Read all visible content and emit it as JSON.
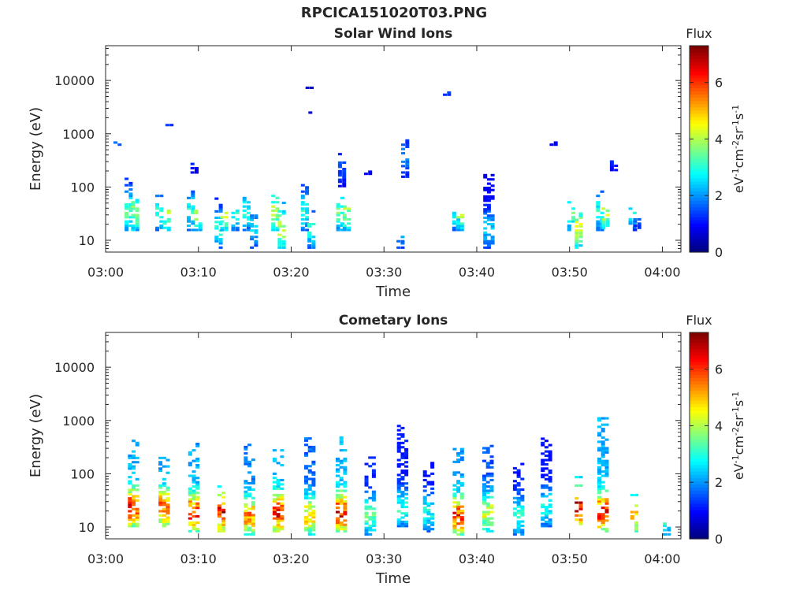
{
  "figure": {
    "title": "RPCICA151020T03.PNG"
  },
  "colors": {
    "background": "#ffffff",
    "axis": "#262626",
    "colormap": "jet"
  },
  "panels": [
    {
      "id": "solar-wind",
      "title": "Solar Wind Ions",
      "xlabel": "Time",
      "ylabel": "Energy (eV)",
      "colorbar_title": "Flux",
      "colorbar_unit": "eV-1cm-2sr-1s-1"
    },
    {
      "id": "cometary",
      "title": "Cometary Ions",
      "xlabel": "Time",
      "ylabel": "Energy (eV)",
      "colorbar_title": "Flux",
      "colorbar_unit": "eV-1cm-2sr-1s-1"
    }
  ],
  "chart_data": [
    {
      "type": "heatmap",
      "title": "Solar Wind Ions",
      "xlabel": "Time",
      "ylabel": "Energy (eV)",
      "x_ticks": [
        "03:00",
        "03:10",
        "03:20",
        "03:30",
        "03:40",
        "03:50",
        "04:00"
      ],
      "y_ticks": [
        10,
        100,
        1000,
        10000
      ],
      "y_scale": "log",
      "y_range": [
        6,
        45000
      ],
      "x_range_minutes": [
        0,
        62
      ],
      "colorbar": {
        "title": "Flux",
        "unit": "eV-1cm-2sr-1s-1",
        "range": [
          0,
          7.3
        ],
        "ticks": [
          0,
          2,
          4,
          6
        ]
      },
      "bursts": [
        {
          "t": 1.3,
          "emin": 600,
          "emax": 700,
          "v": 2.5
        },
        {
          "t": 2.5,
          "emin": 15,
          "emax": 150,
          "v": 3.5
        },
        {
          "t": 3.2,
          "emin": 15,
          "emax": 60,
          "v": 4.0
        },
        {
          "t": 5.8,
          "emin": 15,
          "emax": 70,
          "v": 3.0
        },
        {
          "t": 6.6,
          "emin": 15,
          "emax": 40,
          "v": 4.0
        },
        {
          "t": 6.9,
          "emin": 1400,
          "emax": 1500,
          "v": 2.5
        },
        {
          "t": 9.2,
          "emin": 15,
          "emax": 80,
          "v": 3.0
        },
        {
          "t": 9.6,
          "emin": 180,
          "emax": 300,
          "v": 1.5
        },
        {
          "t": 10.0,
          "emin": 15,
          "emax": 40,
          "v": 4.2
        },
        {
          "t": 12.2,
          "emin": 7,
          "emax": 60,
          "v": 3.0
        },
        {
          "t": 12.8,
          "emin": 15,
          "emax": 35,
          "v": 4.5
        },
        {
          "t": 14.0,
          "emin": 15,
          "emax": 40,
          "v": 3.0
        },
        {
          "t": 15.2,
          "emin": 15,
          "emax": 70,
          "v": 3.0
        },
        {
          "t": 16.0,
          "emin": 7,
          "emax": 30,
          "v": 2.5
        },
        {
          "t": 18.3,
          "emin": 15,
          "emax": 90,
          "v": 4.0
        },
        {
          "t": 19.0,
          "emin": 7,
          "emax": 50,
          "v": 4.5
        },
        {
          "t": 21.5,
          "emin": 15,
          "emax": 120,
          "v": 3.0
        },
        {
          "t": 22.2,
          "emin": 7,
          "emax": 40,
          "v": 3.0
        },
        {
          "t": 22.0,
          "emin": 7000,
          "emax": 7500,
          "v": 1.0
        },
        {
          "t": 22.3,
          "emin": 2400,
          "emax": 2600,
          "v": 1.5
        },
        {
          "t": 25.3,
          "emin": 15,
          "emax": 60,
          "v": 3.5
        },
        {
          "t": 25.5,
          "emin": 100,
          "emax": 400,
          "v": 1.5
        },
        {
          "t": 26.0,
          "emin": 15,
          "emax": 45,
          "v": 4.0
        },
        {
          "t": 28.3,
          "emin": 170,
          "emax": 190,
          "v": 1.5
        },
        {
          "t": 31.8,
          "emin": 7,
          "emax": 12,
          "v": 2.5
        },
        {
          "t": 32.3,
          "emin": 150,
          "emax": 900,
          "v": 2.0
        },
        {
          "t": 36.8,
          "emin": 5200,
          "emax": 5800,
          "v": 2.5
        },
        {
          "t": 37.8,
          "emin": 15,
          "emax": 50,
          "v": 3.0
        },
        {
          "t": 38.2,
          "emin": 15,
          "emax": 35,
          "v": 4.0
        },
        {
          "t": 41.3,
          "emin": 7,
          "emax": 170,
          "v": 2.5
        },
        {
          "t": 48.3,
          "emin": 600,
          "emax": 680,
          "v": 1.5
        },
        {
          "t": 50.2,
          "emin": 15,
          "emax": 100,
          "v": 3.5
        },
        {
          "t": 51.0,
          "emin": 7,
          "emax": 35,
          "v": 4.5
        },
        {
          "t": 53.3,
          "emin": 15,
          "emax": 80,
          "v": 3.0
        },
        {
          "t": 53.9,
          "emin": 15,
          "emax": 40,
          "v": 4.2
        },
        {
          "t": 54.8,
          "emin": 200,
          "emax": 380,
          "v": 1.5
        },
        {
          "t": 56.8,
          "emin": 15,
          "emax": 40,
          "v": 3.0
        },
        {
          "t": 57.3,
          "emin": 15,
          "emax": 25,
          "v": 2.0
        }
      ]
    },
    {
      "type": "heatmap",
      "title": "Cometary Ions",
      "xlabel": "Time",
      "ylabel": "Energy (eV)",
      "x_ticks": [
        "03:00",
        "03:10",
        "03:20",
        "03:30",
        "03:40",
        "03:50",
        "04:00"
      ],
      "y_ticks": [
        10,
        100,
        1000,
        10000
      ],
      "y_scale": "log",
      "y_range": [
        6,
        45000
      ],
      "x_range_minutes": [
        0,
        62
      ],
      "colorbar": {
        "title": "Flux",
        "unit": "eV-1cm-2sr-1s-1",
        "range": [
          0,
          7.3
        ],
        "ticks": [
          0,
          2,
          4,
          6
        ]
      },
      "bursts": [
        {
          "t": 3.0,
          "emin": 10,
          "emax": 450,
          "v": 6.5
        },
        {
          "t": 6.3,
          "emin": 10,
          "emax": 200,
          "v": 6.0
        },
        {
          "t": 9.5,
          "emin": 8,
          "emax": 420,
          "v": 6.3
        },
        {
          "t": 12.5,
          "emin": 8,
          "emax": 60,
          "v": 6.8
        },
        {
          "t": 15.5,
          "emin": 7,
          "emax": 340,
          "v": 5.5
        },
        {
          "t": 18.6,
          "emin": 8,
          "emax": 300,
          "v": 6.5
        },
        {
          "t": 22.0,
          "emin": 7,
          "emax": 500,
          "v": 5.0
        },
        {
          "t": 25.4,
          "emin": 8,
          "emax": 500,
          "v": 6.6
        },
        {
          "t": 28.5,
          "emin": 7,
          "emax": 200,
          "v": 3.5
        },
        {
          "t": 32.0,
          "emin": 10,
          "emax": 800,
          "v": 3.2
        },
        {
          "t": 34.8,
          "emin": 8,
          "emax": 180,
          "v": 3.0
        },
        {
          "t": 38.0,
          "emin": 7,
          "emax": 300,
          "v": 6.2
        },
        {
          "t": 41.2,
          "emin": 8,
          "emax": 400,
          "v": 4.5
        },
        {
          "t": 44.5,
          "emin": 7,
          "emax": 160,
          "v": 3.2
        },
        {
          "t": 47.5,
          "emin": 10,
          "emax": 450,
          "v": 3.0
        },
        {
          "t": 51.0,
          "emin": 10,
          "emax": 100,
          "v": 6.9
        },
        {
          "t": 53.6,
          "emin": 8,
          "emax": 1100,
          "v": 6.5
        },
        {
          "t": 57.0,
          "emin": 8,
          "emax": 40,
          "v": 5.5
        },
        {
          "t": 60.5,
          "emin": 7,
          "emax": 12,
          "v": 3.5
        }
      ]
    }
  ]
}
